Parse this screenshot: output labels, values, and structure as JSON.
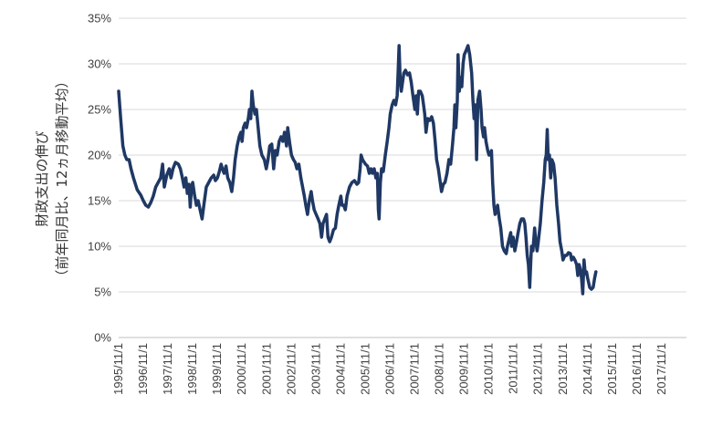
{
  "chart_data": {
    "type": "line",
    "title": "",
    "ylabel_line1": "財政支出の伸び",
    "ylabel_line2": "（前年同月比、12ヵ月移動平均）",
    "xlabel": "",
    "ylim": [
      0,
      35
    ],
    "yticks": [
      "0%",
      "5%",
      "10%",
      "15%",
      "20%",
      "25%",
      "30%",
      "35%"
    ],
    "xticks": [
      "1995/11/1",
      "1996/11/1",
      "1997/11/1",
      "1998/11/1",
      "1999/11/1",
      "2000/11/1",
      "2001/11/1",
      "2002/11/1",
      "2003/11/1",
      "2004/11/1",
      "2005/11/1",
      "2006/11/1",
      "2007/11/1",
      "2008/11/1",
      "2009/11/1",
      "2010/11/1",
      "2011/11/1",
      "2012/11/1",
      "2013/11/1",
      "2014/11/1",
      "2015/11/1",
      "2016/11/1",
      "2017/11/1"
    ],
    "grid": true,
    "legend": "none",
    "line_color": "#1f3864",
    "grid_color": "#d9d9d9",
    "series": [
      {
        "name": "",
        "points": [
          [
            0.0,
            27.0
          ],
          [
            0.08,
            24.0
          ],
          [
            0.17,
            21.0
          ],
          [
            0.25,
            20.0
          ],
          [
            0.33,
            19.5
          ],
          [
            0.42,
            19.5
          ],
          [
            0.5,
            18.5
          ],
          [
            0.6,
            17.5
          ],
          [
            0.75,
            16.2
          ],
          [
            0.9,
            15.6
          ],
          [
            1.0,
            15.0
          ],
          [
            1.1,
            14.5
          ],
          [
            1.2,
            14.3
          ],
          [
            1.3,
            14.8
          ],
          [
            1.4,
            15.5
          ],
          [
            1.5,
            16.5
          ],
          [
            1.6,
            17.0
          ],
          [
            1.7,
            17.5
          ],
          [
            1.78,
            19.0
          ],
          [
            1.85,
            16.5
          ],
          [
            1.95,
            17.8
          ],
          [
            2.05,
            18.5
          ],
          [
            2.12,
            17.5
          ],
          [
            2.2,
            18.5
          ],
          [
            2.3,
            19.2
          ],
          [
            2.42,
            19.0
          ],
          [
            2.5,
            18.5
          ],
          [
            2.58,
            17.5
          ],
          [
            2.65,
            16.5
          ],
          [
            2.72,
            17.5
          ],
          [
            2.78,
            15.8
          ],
          [
            2.85,
            16.8
          ],
          [
            2.9,
            14.3
          ],
          [
            2.95,
            16.5
          ],
          [
            3.0,
            17.0
          ],
          [
            3.08,
            15.5
          ],
          [
            3.15,
            14.5
          ],
          [
            3.22,
            15.0
          ],
          [
            3.3,
            14.0
          ],
          [
            3.38,
            13.0
          ],
          [
            3.45,
            14.5
          ],
          [
            3.55,
            16.5
          ],
          [
            3.65,
            17.0
          ],
          [
            3.75,
            17.5
          ],
          [
            3.85,
            17.8
          ],
          [
            3.92,
            17.2
          ],
          [
            4.0,
            17.5
          ],
          [
            4.08,
            18.2
          ],
          [
            4.15,
            19.0
          ],
          [
            4.2,
            18.5
          ],
          [
            4.27,
            18.0
          ],
          [
            4.35,
            18.8
          ],
          [
            4.42,
            17.5
          ],
          [
            4.5,
            17.0
          ],
          [
            4.58,
            16.0
          ],
          [
            4.65,
            17.5
          ],
          [
            4.72,
            19.5
          ],
          [
            4.8,
            21.0
          ],
          [
            4.88,
            22.0
          ],
          [
            4.95,
            22.5
          ],
          [
            5.0,
            21.5
          ],
          [
            5.05,
            23.0
          ],
          [
            5.12,
            23.5
          ],
          [
            5.18,
            23.0
          ],
          [
            5.25,
            24.0
          ],
          [
            5.3,
            25.0
          ],
          [
            5.35,
            24.0
          ],
          [
            5.4,
            27.0
          ],
          [
            5.45,
            25.5
          ],
          [
            5.52,
            24.5
          ],
          [
            5.58,
            25.0
          ],
          [
            5.65,
            23.0
          ],
          [
            5.72,
            21.0
          ],
          [
            5.8,
            20.0
          ],
          [
            5.9,
            19.5
          ],
          [
            5.98,
            18.5
          ],
          [
            6.05,
            19.5
          ],
          [
            6.12,
            21.0
          ],
          [
            6.2,
            21.2
          ],
          [
            6.28,
            18.5
          ],
          [
            6.35,
            20.5
          ],
          [
            6.42,
            20.0
          ],
          [
            6.5,
            21.5
          ],
          [
            6.58,
            22.0
          ],
          [
            6.65,
            21.5
          ],
          [
            6.72,
            22.5
          ],
          [
            6.8,
            21.0
          ],
          [
            6.85,
            23.0
          ],
          [
            6.92,
            21.5
          ],
          [
            7.0,
            20.0
          ],
          [
            7.08,
            19.5
          ],
          [
            7.15,
            19.2
          ],
          [
            7.22,
            18.5
          ],
          [
            7.3,
            19.0
          ],
          [
            7.38,
            17.5
          ],
          [
            7.45,
            16.5
          ],
          [
            7.52,
            15.5
          ],
          [
            7.58,
            14.5
          ],
          [
            7.65,
            13.5
          ],
          [
            7.72,
            15.0
          ],
          [
            7.8,
            16.0
          ],
          [
            7.85,
            15.0
          ],
          [
            7.92,
            14.0
          ],
          [
            8.0,
            13.5
          ],
          [
            8.08,
            13.0
          ],
          [
            8.15,
            12.5
          ],
          [
            8.22,
            11.0
          ],
          [
            8.28,
            12.5
          ],
          [
            8.35,
            13.0
          ],
          [
            8.42,
            13.5
          ],
          [
            8.48,
            11.0
          ],
          [
            8.55,
            10.5
          ],
          [
            8.62,
            11.0
          ],
          [
            8.7,
            11.8
          ],
          [
            8.78,
            12.0
          ],
          [
            8.85,
            13.5
          ],
          [
            8.92,
            14.5
          ],
          [
            9.0,
            15.5
          ],
          [
            9.05,
            14.5
          ],
          [
            9.12,
            14.5
          ],
          [
            9.18,
            14.0
          ],
          [
            9.25,
            15.5
          ],
          [
            9.35,
            16.5
          ],
          [
            9.45,
            17.0
          ],
          [
            9.55,
            17.2
          ],
          [
            9.65,
            16.8
          ],
          [
            9.72,
            17.0
          ],
          [
            9.78,
            18.5
          ],
          [
            9.82,
            20.0
          ],
          [
            9.88,
            19.5
          ],
          [
            9.95,
            19.2
          ],
          [
            10.0,
            19.0
          ],
          [
            10.08,
            18.8
          ],
          [
            10.15,
            18.0
          ],
          [
            10.22,
            18.5
          ],
          [
            10.28,
            18.0
          ],
          [
            10.35,
            18.5
          ],
          [
            10.42,
            17.5
          ],
          [
            10.48,
            18.0
          ],
          [
            10.52,
            14.0
          ],
          [
            10.55,
            13.0
          ],
          [
            10.6,
            17.0
          ],
          [
            10.65,
            18.5
          ],
          [
            10.72,
            18.2
          ],
          [
            10.8,
            20.0
          ],
          [
            10.88,
            21.5
          ],
          [
            10.95,
            23.0
          ],
          [
            11.0,
            24.5
          ],
          [
            11.08,
            25.5
          ],
          [
            11.15,
            26.0
          ],
          [
            11.22,
            25.5
          ],
          [
            11.28,
            26.5
          ],
          [
            11.32,
            29.0
          ],
          [
            11.36,
            32.0
          ],
          [
            11.4,
            28.5
          ],
          [
            11.45,
            27.0
          ],
          [
            11.5,
            28.0
          ],
          [
            11.55,
            29.0
          ],
          [
            11.62,
            29.3
          ],
          [
            11.7,
            28.8
          ],
          [
            11.78,
            29.0
          ],
          [
            11.85,
            28.0
          ],
          [
            11.92,
            26.5
          ],
          [
            12.0,
            25.0
          ],
          [
            12.05,
            26.5
          ],
          [
            12.1,
            24.5
          ],
          [
            12.15,
            27.0
          ],
          [
            12.22,
            27.0
          ],
          [
            12.3,
            26.5
          ],
          [
            12.35,
            25.5
          ],
          [
            12.4,
            24.5
          ],
          [
            12.45,
            22.5
          ],
          [
            12.52,
            24.0
          ],
          [
            12.6,
            23.8
          ],
          [
            12.68,
            24.2
          ],
          [
            12.75,
            23.5
          ],
          [
            12.82,
            21.5
          ],
          [
            12.88,
            19.5
          ],
          [
            12.95,
            18.5
          ],
          [
            13.0,
            17.5
          ],
          [
            13.08,
            16.0
          ],
          [
            13.15,
            16.8
          ],
          [
            13.22,
            17.0
          ],
          [
            13.3,
            18.0
          ],
          [
            13.38,
            19.5
          ],
          [
            13.45,
            19.0
          ],
          [
            13.52,
            21.0
          ],
          [
            13.58,
            23.0
          ],
          [
            13.62,
            25.5
          ],
          [
            13.66,
            23.0
          ],
          [
            13.72,
            26.0
          ],
          [
            13.75,
            31.0
          ],
          [
            13.8,
            27.0
          ],
          [
            13.85,
            28.5
          ],
          [
            13.9,
            27.5
          ],
          [
            13.95,
            30.0
          ],
          [
            14.0,
            31.0
          ],
          [
            14.08,
            31.5
          ],
          [
            14.15,
            32.0
          ],
          [
            14.22,
            31.0
          ],
          [
            14.3,
            29.0
          ],
          [
            14.35,
            26.0
          ],
          [
            14.4,
            24.0
          ],
          [
            14.45,
            25.5
          ],
          [
            14.5,
            19.5
          ],
          [
            14.55,
            26.0
          ],
          [
            14.62,
            27.0
          ],
          [
            14.68,
            25.0
          ],
          [
            14.72,
            23.0
          ],
          [
            14.78,
            22.0
          ],
          [
            14.82,
            23.0
          ],
          [
            14.88,
            21.5
          ],
          [
            14.95,
            20.5
          ],
          [
            15.0,
            20.0
          ],
          [
            15.05,
            20.0
          ],
          [
            15.1,
            20.5
          ],
          [
            15.15,
            17.0
          ],
          [
            15.2,
            14.5
          ],
          [
            15.25,
            13.5
          ],
          [
            15.3,
            14.0
          ],
          [
            15.35,
            14.5
          ],
          [
            15.42,
            13.0
          ],
          [
            15.48,
            12.0
          ],
          [
            15.55,
            10.0
          ],
          [
            15.62,
            9.5
          ],
          [
            15.7,
            9.2
          ],
          [
            15.75,
            10.0
          ],
          [
            15.82,
            10.8
          ],
          [
            15.88,
            11.5
          ],
          [
            15.92,
            10.0
          ],
          [
            15.98,
            11.0
          ],
          [
            16.05,
            9.5
          ],
          [
            16.12,
            10.5
          ],
          [
            16.18,
            11.5
          ],
          [
            16.25,
            12.5
          ],
          [
            16.32,
            13.0
          ],
          [
            16.4,
            13.0
          ],
          [
            16.45,
            12.5
          ],
          [
            16.5,
            11.0
          ],
          [
            16.55,
            9.0
          ],
          [
            16.6,
            8.0
          ],
          [
            16.65,
            5.5
          ],
          [
            16.72,
            10.0
          ],
          [
            16.78,
            9.5
          ],
          [
            16.85,
            12.0
          ],
          [
            16.9,
            10.5
          ],
          [
            16.95,
            9.5
          ],
          [
            17.0,
            10.5
          ],
          [
            17.08,
            12.5
          ],
          [
            17.15,
            15.0
          ],
          [
            17.22,
            17.0
          ],
          [
            17.28,
            19.5
          ],
          [
            17.32,
            20.0
          ],
          [
            17.36,
            22.8
          ],
          [
            17.4,
            19.5
          ],
          [
            17.45,
            20.0
          ],
          [
            17.5,
            17.5
          ],
          [
            17.55,
            19.5
          ],
          [
            17.62,
            19.0
          ],
          [
            17.68,
            17.5
          ],
          [
            17.75,
            14.5
          ],
          [
            17.82,
            12.5
          ],
          [
            17.88,
            10.5
          ],
          [
            17.95,
            9.5
          ],
          [
            18.0,
            8.5
          ],
          [
            18.08,
            9.0
          ],
          [
            18.15,
            9.0
          ],
          [
            18.22,
            9.3
          ],
          [
            18.3,
            9.2
          ],
          [
            18.35,
            8.5
          ],
          [
            18.42,
            8.8
          ],
          [
            18.48,
            8.5
          ],
          [
            18.55,
            8.0
          ],
          [
            18.6,
            6.8
          ],
          [
            18.65,
            8.0
          ],
          [
            18.7,
            7.5
          ],
          [
            18.75,
            6.5
          ],
          [
            18.8,
            4.8
          ],
          [
            18.85,
            8.5
          ],
          [
            18.9,
            7.0
          ],
          [
            18.95,
            7.2
          ],
          [
            19.0,
            6.5
          ],
          [
            19.08,
            5.5
          ],
          [
            19.15,
            5.3
          ],
          [
            19.22,
            5.5
          ],
          [
            19.28,
            6.5
          ],
          [
            19.33,
            7.2
          ]
        ]
      }
    ]
  }
}
